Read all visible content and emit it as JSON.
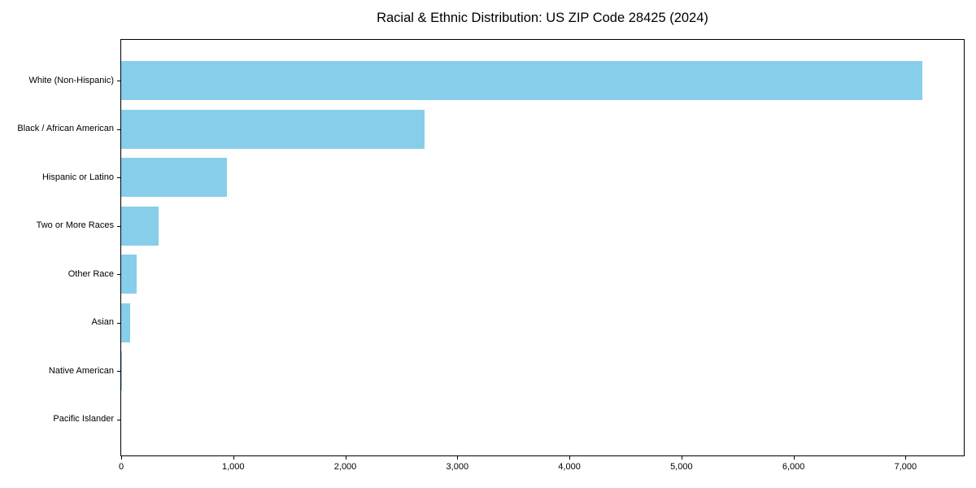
{
  "chart_data": {
    "type": "bar",
    "orientation": "horizontal",
    "title": "Racial & Ethnic Distribution: US ZIP Code 28425 (2024)",
    "categories": [
      "White (Non-Hispanic)",
      "Black / African American",
      "Hispanic or Latino",
      "Two or More Races",
      "Other Race",
      "Asian",
      "Native American",
      "Pacific Islander"
    ],
    "values": [
      7150,
      2710,
      940,
      335,
      140,
      80,
      10,
      0
    ],
    "xlabel": "",
    "ylabel": "",
    "xlim": [
      0,
      7520
    ],
    "xticks": {
      "values": [
        0,
        1000,
        2000,
        3000,
        4000,
        5000,
        6000,
        7000
      ],
      "labels": [
        "0",
        "1,000",
        "2,000",
        "3,000",
        "4,000",
        "5,000",
        "6,000",
        "7,000"
      ]
    },
    "bar_color": "#87CEEB",
    "grid": false,
    "legend": null
  }
}
